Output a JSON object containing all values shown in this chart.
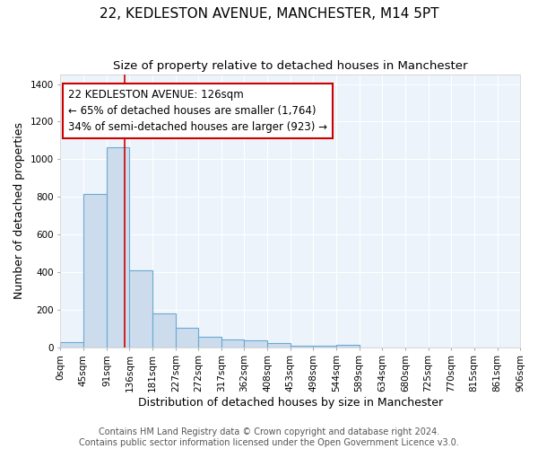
{
  "title1": "22, KEDLESTON AVENUE, MANCHESTER, M14 5PT",
  "title2": "Size of property relative to detached houses in Manchester",
  "xlabel": "Distribution of detached houses by size in Manchester",
  "ylabel": "Number of detached properties",
  "bin_edges": [
    0,
    45,
    91,
    136,
    181,
    227,
    272,
    317,
    362,
    408,
    453,
    498,
    544,
    589,
    634,
    680,
    725,
    770,
    815,
    861,
    906
  ],
  "bar_heights": [
    25,
    815,
    1065,
    410,
    182,
    103,
    55,
    40,
    35,
    20,
    10,
    10,
    15,
    0,
    0,
    0,
    0,
    0,
    0,
    0
  ],
  "bar_color": "#ccdcec",
  "bar_edge_color": "#6aaad4",
  "bar_edge_width": 0.8,
  "red_line_x": 126,
  "red_line_color": "#cc0000",
  "annotation_line1": "22 KEDLESTON AVENUE: 126sqm",
  "annotation_line2": "← 65% of detached houses are smaller (1,764)",
  "annotation_line3": "34% of semi-detached houses are larger (923) →",
  "annotation_box_color": "#ffffff",
  "annotation_box_edge_color": "#cc0000",
  "ylim": [
    0,
    1450
  ],
  "yticks": [
    0,
    200,
    400,
    600,
    800,
    1000,
    1200,
    1400
  ],
  "tick_labels": [
    "0sqm",
    "45sqm",
    "91sqm",
    "136sqm",
    "181sqm",
    "227sqm",
    "272sqm",
    "317sqm",
    "362sqm",
    "408sqm",
    "453sqm",
    "498sqm",
    "544sqm",
    "589sqm",
    "634sqm",
    "680sqm",
    "725sqm",
    "770sqm",
    "815sqm",
    "861sqm",
    "906sqm"
  ],
  "footer1": "Contains HM Land Registry data © Crown copyright and database right 2024.",
  "footer2": "Contains public sector information licensed under the Open Government Licence v3.0.",
  "bg_color": "#ffffff",
  "plot_bg_color": "#edf3fa",
  "title1_fontsize": 11,
  "title2_fontsize": 9.5,
  "annotation_fontsize": 8.5,
  "footer_fontsize": 7,
  "axis_label_fontsize": 9,
  "ylabel_fontsize": 9,
  "tick_fontsize": 7.5
}
